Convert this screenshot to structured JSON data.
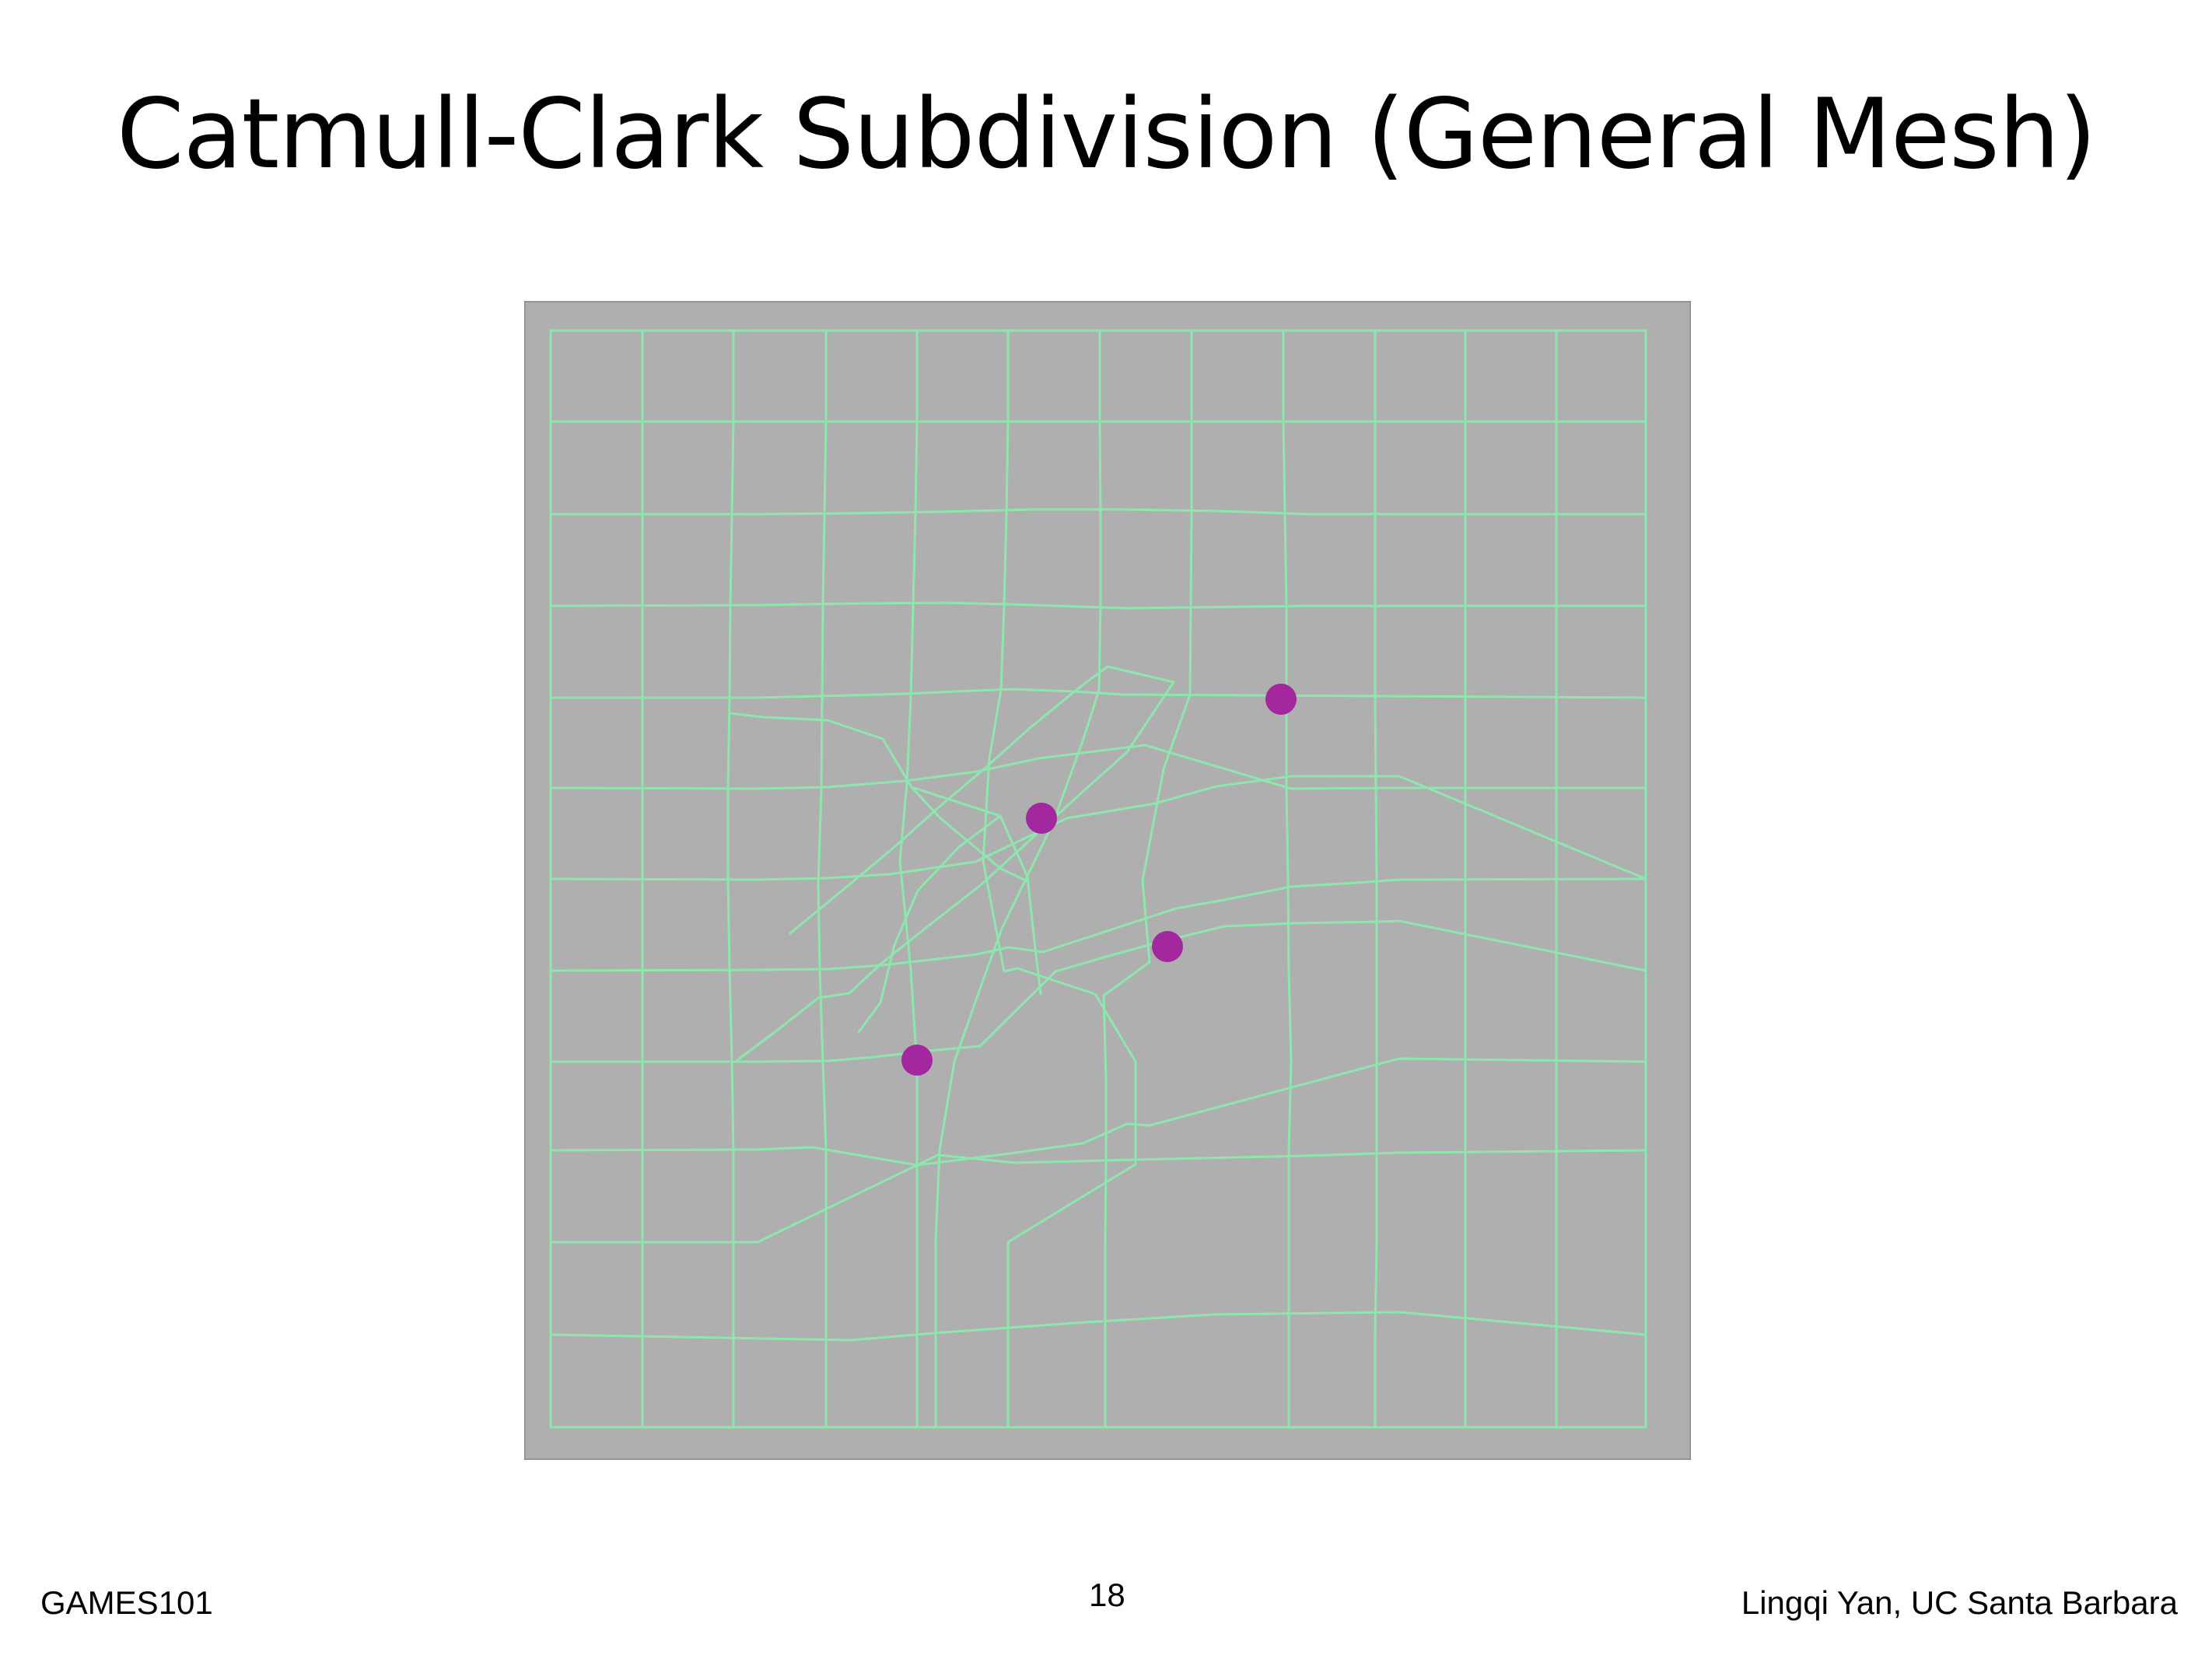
{
  "slide": {
    "title": "Catmull-Clark Subdivision (General Mesh)",
    "course": "GAMES101",
    "page_number": "18",
    "author": "Lingqi Yan, UC Santa Barbara"
  },
  "figure": {
    "background_color": "#afafaf",
    "border_color": "#8a8a8a",
    "mesh_line_color": "#8ee6ae",
    "extraordinary_vertex_color": "#a3279f",
    "extraordinary_vertex_count": 4
  }
}
